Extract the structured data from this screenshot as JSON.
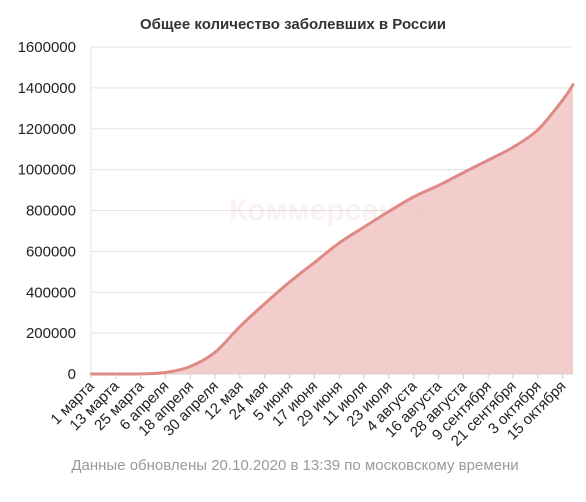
{
  "chart_data": {
    "type": "area",
    "title": "Общее количество заболевших в России",
    "xlabel": "",
    "ylabel": "",
    "ylim": [
      0,
      1600000
    ],
    "yticks": [
      0,
      200000,
      400000,
      600000,
      800000,
      1000000,
      1200000,
      1400000,
      1600000
    ],
    "ytick_labels": [
      "0",
      "200000",
      "400000",
      "600000",
      "800000",
      "1000000",
      "1200000",
      "1400000",
      "1600000"
    ],
    "x_tick_labels": [
      "1 марта",
      "13 марта",
      "25 марта",
      "6 апреля",
      "18 апреля",
      "30 апреля",
      "12 мая",
      "24 мая",
      "5 июня",
      "17 июня",
      "29 июня",
      "11 июля",
      "23 июля",
      "4 августа",
      "16 августа",
      "28 августа",
      "9 сентября",
      "21 сентября",
      "3 октября",
      "15 октября"
    ],
    "x_dates": [
      "2020-03-01",
      "2020-03-13",
      "2020-03-25",
      "2020-04-06",
      "2020-04-18",
      "2020-04-30",
      "2020-05-12",
      "2020-05-24",
      "2020-06-05",
      "2020-06-17",
      "2020-06-29",
      "2020-07-11",
      "2020-07-23",
      "2020-08-04",
      "2020-08-16",
      "2020-08-28",
      "2020-09-09",
      "2020-09-21",
      "2020-10-03",
      "2020-10-15",
      "2020-10-20"
    ],
    "values": [
      0,
      45,
      658,
      7497,
      36793,
      106498,
      232243,
      344481,
      449834,
      545458,
      641156,
      719449,
      795038,
      866627,
      922853,
      985346,
      1046370,
      1109595,
      1194643,
      1340409,
      1415316
    ],
    "grid": true,
    "legend": "none",
    "colors": {
      "line": "#de8a85",
      "fill": "#f0c4c2",
      "grid": "#e3e3e3",
      "axis": "#cfcfcf"
    }
  },
  "watermark": "Коммерсантъ",
  "footnote": "Данные обновлены 20.10.2020 в 13:39 по московскому времени"
}
